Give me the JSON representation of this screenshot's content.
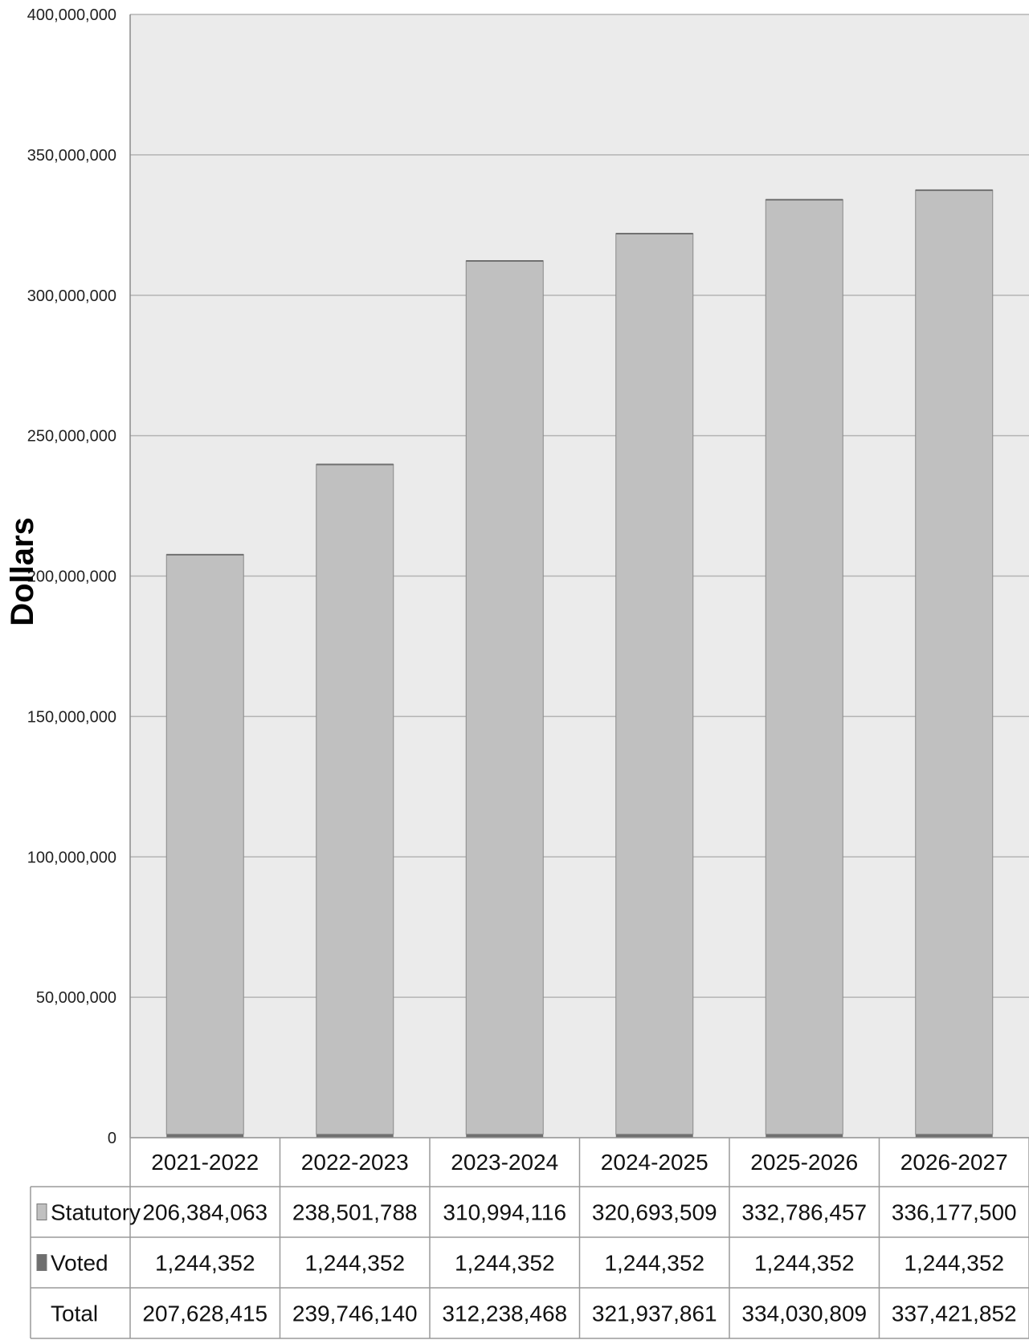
{
  "chart_data": {
    "type": "bar",
    "stacked": true,
    "ylabel": "Dollars",
    "ylim": [
      0,
      400000000
    ],
    "yticks": [
      "0",
      "50,000,000",
      "100,000,000",
      "150,000,000",
      "200,000,000",
      "250,000,000",
      "300,000,000",
      "350,000,000",
      "400,000,000"
    ],
    "ytick_values": [
      0,
      50000000,
      100000000,
      150000000,
      200000000,
      250000000,
      300000000,
      350000000,
      400000000
    ],
    "grid": true,
    "categories": [
      "2021-2022",
      "2022-2023",
      "2023-2024",
      "2024-2025",
      "2025-2026",
      "2026-2027"
    ],
    "series": [
      {
        "name": "Voted",
        "color": "#6e6e6e",
        "values": [
          1244352,
          1244352,
          1244352,
          1244352,
          1244352,
          1244352
        ],
        "labels": [
          "1,244,352",
          "1,244,352",
          "1,244,352",
          "1,244,352",
          "1,244,352",
          "1,244,352"
        ]
      },
      {
        "name": "Statutory",
        "color": "#c0c0c0",
        "values": [
          206384063,
          238501788,
          310994116,
          320693509,
          332786457,
          336177500
        ],
        "labels": [
          "206,384,063",
          "238,501,788",
          "310,994,116",
          "320,693,509",
          "332,786,457",
          "336,177,500"
        ]
      }
    ],
    "table": {
      "rows": [
        {
          "label": "Statutory",
          "series": 1,
          "values": [
            "206,384,063",
            "238,501,788",
            "310,994,116",
            "320,693,509",
            "332,786,457",
            "336,177,500"
          ]
        },
        {
          "label": "Voted",
          "series": 0,
          "values": [
            "1,244,352",
            "1,244,352",
            "1,244,352",
            "1,244,352",
            "1,244,352",
            "1,244,352"
          ]
        },
        {
          "label": "Total",
          "series": null,
          "values": [
            "207,628,415",
            "239,746,140",
            "312,238,468",
            "321,937,861",
            "334,030,809",
            "337,421,852"
          ]
        }
      ]
    },
    "colors": {
      "plot_background": "#ebebeb",
      "gridline": "#b4b4b4",
      "table_border": "#9a9a9a"
    }
  }
}
